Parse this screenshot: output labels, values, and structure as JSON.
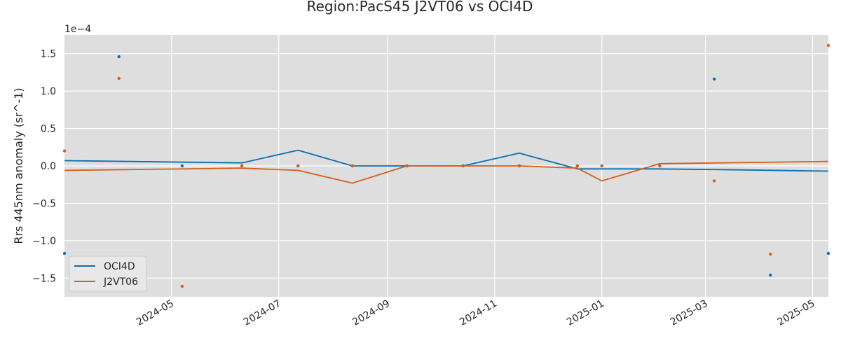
{
  "chart_data": {
    "type": "line",
    "title": "Region:PacS45 J2VT06 vs OCI4D",
    "xlabel": "",
    "ylabel": "Rrs 445nm anomaly (sr^-1)",
    "y_scale_label": "1e−4",
    "y_multiplier": 0.0001,
    "xlim": [
      "2024-03-01",
      "2025-05-10"
    ],
    "ylim": [
      -1.75,
      1.75
    ],
    "yticks": [
      -1.5,
      -1.0,
      -0.5,
      0.0,
      0.5,
      1.0,
      1.5
    ],
    "ytick_labels": [
      "−1.5",
      "−1.0",
      "−0.5",
      "0.0",
      "0.5",
      "1.0",
      "1.5"
    ],
    "xticks": [
      "2024-05-01",
      "2024-07-01",
      "2024-09-01",
      "2024-11-01",
      "2025-01-01",
      "2025-03-01",
      "2025-05-01"
    ],
    "xtick_labels": [
      "2024-05",
      "2024-07",
      "2024-09",
      "2024-11",
      "2025-01",
      "2025-03",
      "2025-05"
    ],
    "grid": true,
    "legend_placement": "lower-left",
    "background_color": "#dedede",
    "series": [
      {
        "name": "OCI4D",
        "color": "#0a6fb3",
        "line": {
          "x": [
            "2024-03-01",
            "2024-06-10",
            "2024-07-12",
            "2024-08-12",
            "2024-09-12",
            "2024-10-14",
            "2024-11-15",
            "2024-12-18",
            "2025-02-01",
            "2025-03-10",
            "2025-05-10"
          ],
          "y": [
            0.07,
            0.04,
            0.21,
            0.0,
            0.0,
            0.0,
            0.17,
            -0.04,
            -0.04,
            -0.05,
            -0.07
          ]
        },
        "points": {
          "x": [
            "2024-03-01",
            "2024-04-01",
            "2024-05-07",
            "2024-06-10",
            "2024-07-12",
            "2024-08-12",
            "2024-09-12",
            "2024-10-14",
            "2024-11-15",
            "2024-12-18",
            "2025-01-01",
            "2025-02-03",
            "2025-03-06",
            "2025-04-07",
            "2025-05-10"
          ],
          "y": [
            -1.17,
            1.46,
            0.0,
            0.0,
            0.0,
            0.0,
            0.0,
            0.0,
            0.0,
            0.0,
            0.0,
            0.0,
            1.16,
            -1.46,
            -1.17
          ]
        }
      },
      {
        "name": "J2VT06",
        "color": "#d2601a",
        "line": {
          "x": [
            "2024-03-01",
            "2024-06-10",
            "2024-07-12",
            "2024-08-12",
            "2024-09-12",
            "2024-10-14",
            "2024-11-15",
            "2024-12-18",
            "2025-01-01",
            "2025-02-03",
            "2025-05-10"
          ],
          "y": [
            -0.06,
            -0.03,
            -0.06,
            -0.23,
            0.0,
            0.0,
            0.0,
            -0.03,
            -0.2,
            0.03,
            0.06
          ]
        },
        "points": {
          "x": [
            "2024-03-01",
            "2024-04-01",
            "2024-05-07",
            "2024-06-10",
            "2024-07-12",
            "2024-08-12",
            "2024-09-12",
            "2024-10-14",
            "2024-11-15",
            "2024-12-18",
            "2025-01-01",
            "2025-02-03",
            "2025-03-06",
            "2025-04-07",
            "2025-05-10"
          ],
          "y": [
            0.2,
            1.17,
            -1.61,
            0.0,
            0.0,
            0.0,
            0.0,
            0.0,
            0.0,
            0.0,
            0.0,
            0.0,
            -0.2,
            -1.18,
            1.61
          ]
        }
      }
    ]
  }
}
